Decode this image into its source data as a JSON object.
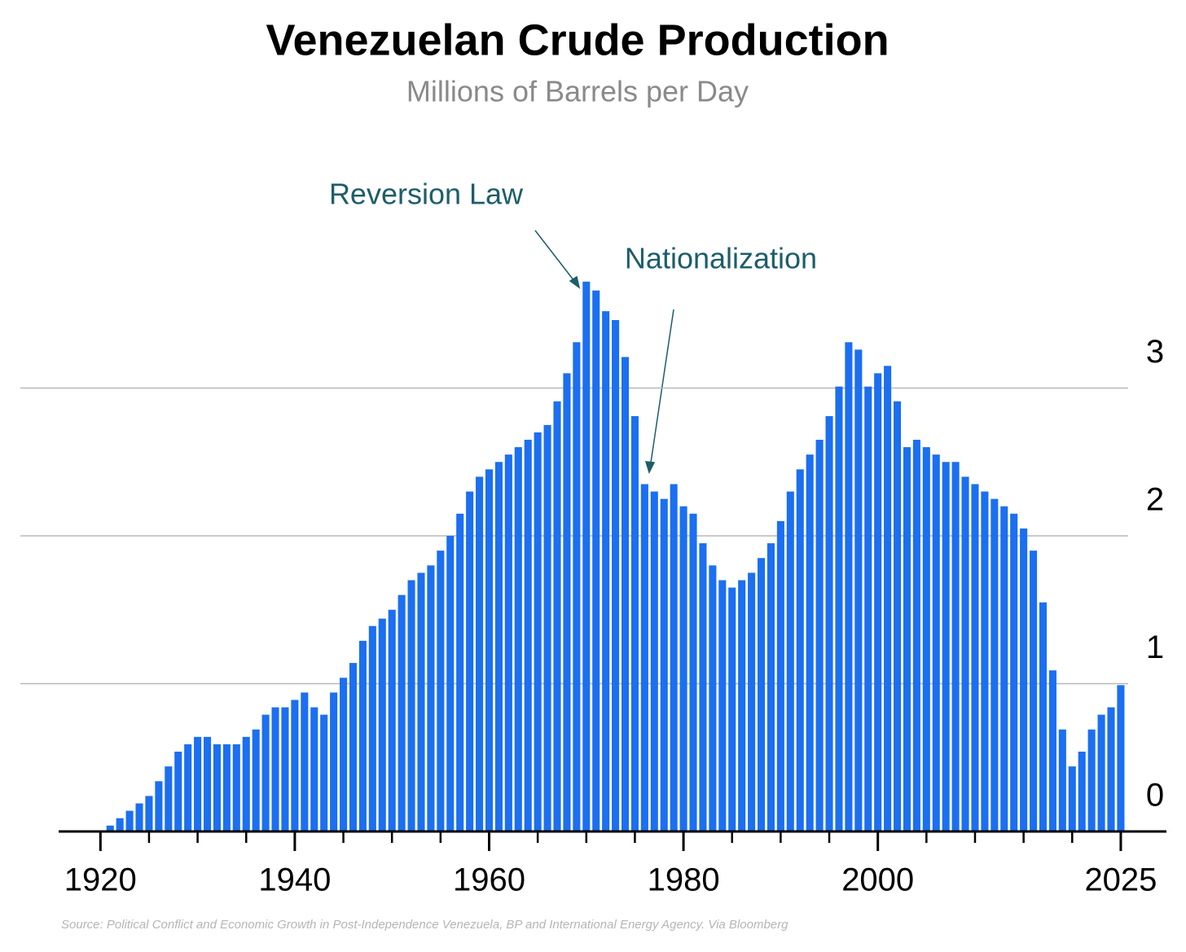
{
  "chart_data": {
    "type": "bar",
    "title": "Venezuelan Crude Production",
    "subtitle": "Millions of Barrels per Day",
    "annotations": [
      {
        "text": "Reversion Law"
      },
      {
        "text": "Nationalization"
      }
    ],
    "source": "Source: Political Conflict and Economic Growth in Post-Independence Venezuela, BP and International Energy Agency. Via Bloomberg",
    "x": [
      1921,
      1922,
      1923,
      1924,
      1925,
      1926,
      1927,
      1928,
      1929,
      1930,
      1931,
      1932,
      1933,
      1934,
      1935,
      1936,
      1937,
      1938,
      1939,
      1940,
      1941,
      1942,
      1943,
      1944,
      1945,
      1946,
      1947,
      1948,
      1949,
      1950,
      1951,
      1952,
      1953,
      1954,
      1955,
      1956,
      1957,
      1958,
      1959,
      1960,
      1961,
      1962,
      1963,
      1964,
      1965,
      1966,
      1967,
      1968,
      1969,
      1970,
      1971,
      1972,
      1973,
      1974,
      1975,
      1976,
      1977,
      1978,
      1979,
      1980,
      1981,
      1982,
      1983,
      1984,
      1985,
      1986,
      1987,
      1988,
      1989,
      1990,
      1991,
      1992,
      1993,
      1994,
      1995,
      1996,
      1997,
      1998,
      1999,
      2000,
      2001,
      2002,
      2003,
      2004,
      2005,
      2006,
      2007,
      2008,
      2009,
      2010,
      2011,
      2012,
      2013,
      2014,
      2015,
      2016,
      2017,
      2018,
      2019,
      2020,
      2021,
      2022,
      2023,
      2024,
      2025
    ],
    "values": [
      0.04,
      0.09,
      0.14,
      0.19,
      0.24,
      0.34,
      0.44,
      0.54,
      0.59,
      0.64,
      0.64,
      0.59,
      0.59,
      0.59,
      0.64,
      0.69,
      0.79,
      0.84,
      0.84,
      0.89,
      0.94,
      0.84,
      0.79,
      0.94,
      1.04,
      1.14,
      1.29,
      1.39,
      1.44,
      1.5,
      1.6,
      1.7,
      1.75,
      1.8,
      1.9,
      2.0,
      2.15,
      2.3,
      2.4,
      2.45,
      2.5,
      2.55,
      2.6,
      2.65,
      2.7,
      2.75,
      2.91,
      3.1,
      3.31,
      3.72,
      3.66,
      3.52,
      3.46,
      3.21,
      2.81,
      2.35,
      2.3,
      2.25,
      2.35,
      2.2,
      2.15,
      1.95,
      1.8,
      1.7,
      1.65,
      1.7,
      1.75,
      1.85,
      1.95,
      2.1,
      2.3,
      2.45,
      2.55,
      2.65,
      2.81,
      3.01,
      3.31,
      3.26,
      3.01,
      3.1,
      3.15,
      2.91,
      2.6,
      2.65,
      2.6,
      2.55,
      2.5,
      2.5,
      2.4,
      2.35,
      2.3,
      2.25,
      2.2,
      2.15,
      2.05,
      1.9,
      1.55,
      1.09,
      0.69,
      0.44,
      0.54,
      0.69,
      0.79,
      0.84,
      0.99
    ],
    "color": "#1b6ff0",
    "xlim": [
      1915.7,
      2029.7
    ],
    "xticks": [
      1920,
      1940,
      1960,
      1980,
      2000,
      2025
    ],
    "x_minor_ticks": [
      1925,
      1930,
      1935,
      1945,
      1950,
      1955,
      1965,
      1970,
      1975,
      1985,
      1990,
      1995,
      2005,
      2010,
      2015,
      2020
    ],
    "ylim": [
      0,
      4
    ],
    "yticks": [
      0,
      1,
      2,
      3
    ],
    "grid": true
  }
}
